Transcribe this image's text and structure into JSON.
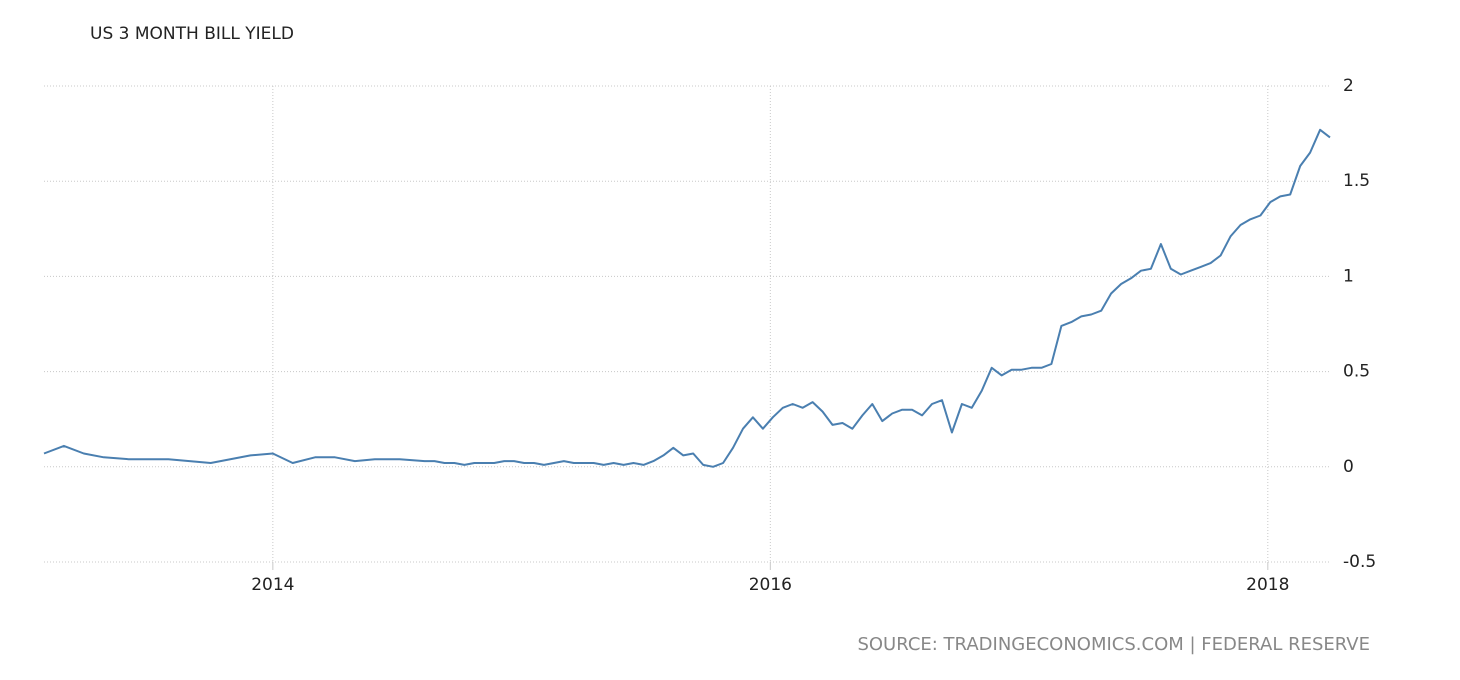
{
  "chart_data": {
    "type": "line",
    "title": "US 3 MONTH BILL YIELD",
    "source": "SOURCE: TRADINGECONOMICS.COM | FEDERAL RESERVE",
    "color": "#4a7fb0",
    "grid": true,
    "x": [
      2013.08,
      2013.16,
      2013.24,
      2013.32,
      2013.42,
      2013.58,
      2013.75,
      2013.91,
      2014.0,
      2014.08,
      2014.17,
      2014.25,
      2014.33,
      2014.41,
      2014.51,
      2014.61,
      2014.65,
      2014.69,
      2014.73,
      2014.77,
      2014.81,
      2014.85,
      2014.89,
      2014.93,
      2014.97,
      2015.01,
      2015.05,
      2015.09,
      2015.13,
      2015.17,
      2015.21,
      2015.25,
      2015.29,
      2015.33,
      2015.37,
      2015.41,
      2015.45,
      2015.49,
      2015.53,
      2015.57,
      2015.61,
      2015.65,
      2015.69,
      2015.73,
      2015.77,
      2015.81,
      2015.85,
      2015.89,
      2015.93,
      2015.97,
      2016.01,
      2016.05,
      2016.09,
      2016.13,
      2016.17,
      2016.21,
      2016.25,
      2016.29,
      2016.33,
      2016.37,
      2016.41,
      2016.45,
      2016.49,
      2016.53,
      2016.57,
      2016.61,
      2016.65,
      2016.69,
      2016.73,
      2016.77,
      2016.81,
      2016.85,
      2016.89,
      2016.93,
      2016.97,
      2017.01,
      2017.05,
      2017.09,
      2017.13,
      2017.17,
      2017.21,
      2017.25,
      2017.29,
      2017.33,
      2017.37,
      2017.41,
      2017.45,
      2017.49,
      2017.53,
      2017.57,
      2017.61,
      2017.65,
      2017.69,
      2017.73,
      2017.77,
      2017.81,
      2017.85,
      2017.89,
      2017.93,
      2017.97,
      2018.01,
      2018.05,
      2018.09,
      2018.13,
      2018.17,
      2018.21,
      2018.25
    ],
    "values": [
      0.07,
      0.11,
      0.07,
      0.05,
      0.04,
      0.04,
      0.02,
      0.06,
      0.07,
      0.02,
      0.05,
      0.05,
      0.03,
      0.04,
      0.04,
      0.03,
      0.03,
      0.02,
      0.02,
      0.01,
      0.02,
      0.02,
      0.02,
      0.03,
      0.03,
      0.02,
      0.02,
      0.01,
      0.02,
      0.03,
      0.02,
      0.02,
      0.02,
      0.01,
      0.02,
      0.01,
      0.02,
      0.01,
      0.03,
      0.06,
      0.1,
      0.06,
      0.07,
      0.01,
      0.0,
      0.02,
      0.1,
      0.2,
      0.26,
      0.2,
      0.26,
      0.31,
      0.33,
      0.31,
      0.34,
      0.29,
      0.22,
      0.23,
      0.2,
      0.27,
      0.33,
      0.24,
      0.28,
      0.3,
      0.3,
      0.27,
      0.33,
      0.35,
      0.18,
      0.33,
      0.31,
      0.4,
      0.52,
      0.48,
      0.51,
      0.51,
      0.52,
      0.52,
      0.54,
      0.74,
      0.76,
      0.79,
      0.8,
      0.82,
      0.91,
      0.96,
      0.99,
      1.03,
      1.04,
      1.17,
      1.04,
      1.01,
      1.03,
      1.05,
      1.07,
      1.11,
      1.21,
      1.27,
      1.3,
      1.32,
      1.39,
      1.42,
      1.43,
      1.58,
      1.65,
      1.77,
      1.73
    ],
    "xlim": [
      2013.08,
      2018.25
    ],
    "xticks": [
      2014,
      2016,
      2018
    ],
    "ylim": [
      -0.5,
      2
    ],
    "yticks": [
      -0.5,
      0,
      0.5,
      1,
      1.5,
      2
    ]
  }
}
